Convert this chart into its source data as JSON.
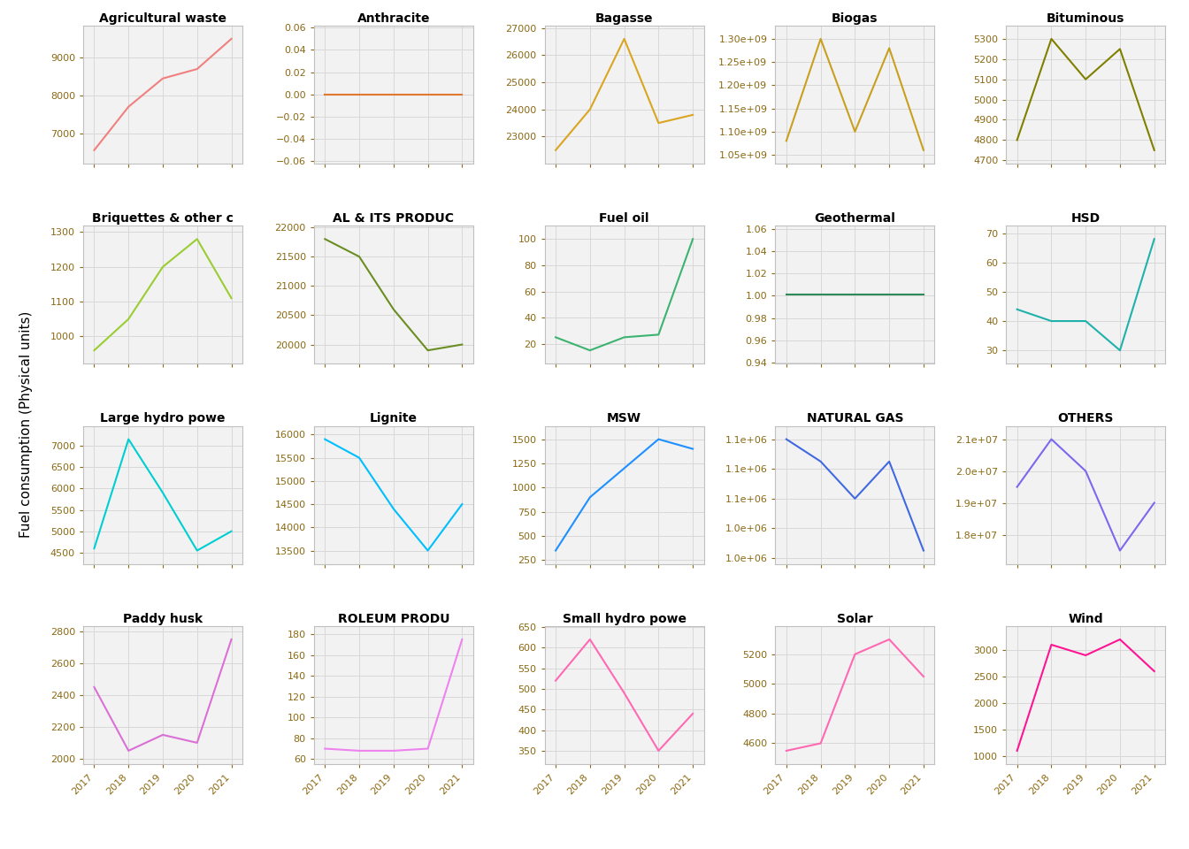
{
  "years": [
    2017,
    2018,
    2019,
    2020,
    2021
  ],
  "subplots": [
    {
      "title": "Agricultural waste",
      "values": [
        6550,
        7700,
        8450,
        8700,
        9500
      ],
      "color": "#F08080"
    },
    {
      "title": "Anthracite",
      "values": [
        0.0,
        0.0,
        0.0,
        0.0,
        0.0
      ],
      "color": "#E07830"
    },
    {
      "title": "Bagasse",
      "values": [
        22500,
        24000,
        26600,
        23500,
        23800
      ],
      "color": "#DAA520"
    },
    {
      "title": "Biogas",
      "values": [
        1080000000.0,
        1300000000.0,
        1100000000.0,
        1280000000.0,
        1060000000.0
      ],
      "color": "#C8A020"
    },
    {
      "title": "Bituminous",
      "values": [
        4800,
        5300,
        5100,
        5250,
        4750
      ],
      "color": "#808000"
    },
    {
      "title": "Briquettes & other c",
      "values": [
        960,
        1050,
        1200,
        1280,
        1110
      ],
      "color": "#9ACD32"
    },
    {
      "title": "AL & ITS PRODUC",
      "values": [
        21800,
        21500,
        20600,
        19900,
        20000
      ],
      "color": "#6B8E23"
    },
    {
      "title": "Fuel oil",
      "values": [
        25,
        15,
        25,
        27,
        100
      ],
      "color": "#3CB371"
    },
    {
      "title": "Geothermal",
      "values": [
        1.001,
        1.001,
        1.001,
        1.001,
        1.001
      ],
      "color": "#2E8B57"
    },
    {
      "title": "HSD",
      "values": [
        44,
        40,
        40,
        30,
        68
      ],
      "color": "#20B2AA"
    },
    {
      "title": "Large hydro powe",
      "values": [
        4600,
        7150,
        5900,
        4550,
        5000
      ],
      "color": "#00CED1"
    },
    {
      "title": "Lignite",
      "values": [
        15900,
        15500,
        14400,
        13500,
        14500
      ],
      "color": "#00BFFF"
    },
    {
      "title": "MSW",
      "values": [
        350,
        900,
        1200,
        1500,
        1400
      ],
      "color": "#1E90FF"
    },
    {
      "title": "NATURAL GAS",
      "values": [
        1100000,
        1085000,
        1060000,
        1085000,
        1025000
      ],
      "color": "#4169E1"
    },
    {
      "title": "OTHERS",
      "values": [
        19500000.0,
        21000000.0,
        20000000.0,
        17500000.0,
        19000000.0
      ],
      "color": "#7B68EE"
    },
    {
      "title": "Paddy husk",
      "values": [
        2450,
        2050,
        2150,
        2100,
        2750
      ],
      "color": "#DA70D6"
    },
    {
      "title": "ROLEUM PRODU",
      "values": [
        70,
        68,
        68,
        70,
        175
      ],
      "color": "#EE82EE"
    },
    {
      "title": "Small hydro powe",
      "values": [
        520,
        620,
        490,
        350,
        440
      ],
      "color": "#FF69B4"
    },
    {
      "title": "Solar",
      "values": [
        4550,
        4600,
        5200,
        5300,
        5050
      ],
      "color": "#FF69B4"
    },
    {
      "title": "Wind",
      "values": [
        1100,
        3100,
        2900,
        3200,
        2600
      ],
      "color": "#FF1493"
    }
  ],
  "ylabel": "Fuel consumption (Physical units)",
  "fig_bg": "#ffffff",
  "panel_bg": "#f2f2f2",
  "grid_color": "#d8d8d8",
  "tick_color": "#8B6914",
  "title_fontsize": 10,
  "tick_fontsize": 8,
  "ylabel_fontsize": 11
}
